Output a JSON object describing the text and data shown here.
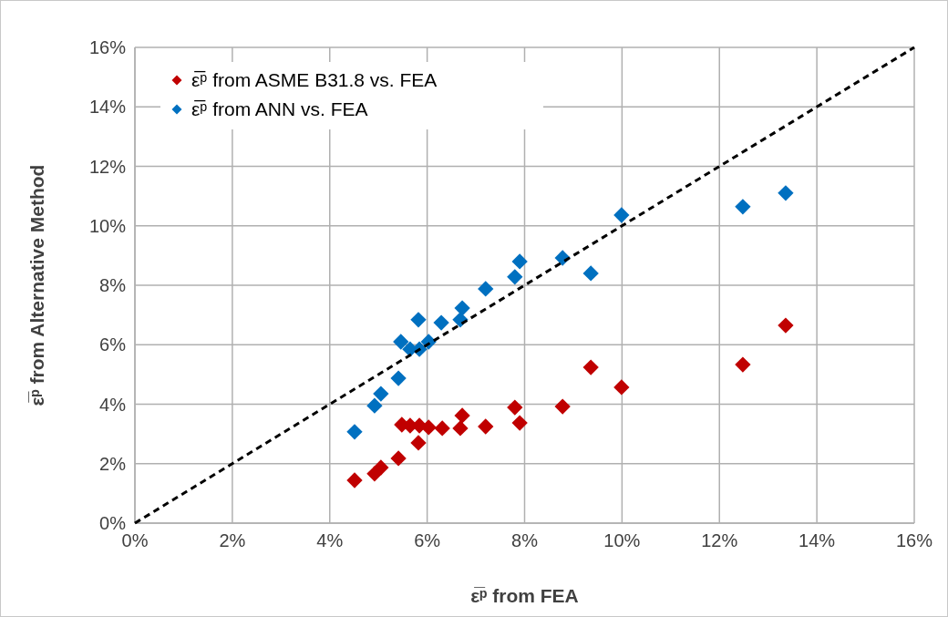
{
  "chart_data": {
    "type": "scatter",
    "xlabel": "ε̅ᵖ from FEA",
    "ylabel": "ε̅ᵖ from Alternative Method",
    "xlim": [
      0,
      16
    ],
    "ylim": [
      0,
      16
    ],
    "xticks": [
      {
        "value": 0,
        "label": "0%"
      },
      {
        "value": 2,
        "label": "2%"
      },
      {
        "value": 4,
        "label": "4%"
      },
      {
        "value": 6,
        "label": "6%"
      },
      {
        "value": 8,
        "label": "8%"
      },
      {
        "value": 10,
        "label": "10%"
      },
      {
        "value": 12,
        "label": "12%"
      },
      {
        "value": 14,
        "label": "14%"
      },
      {
        "value": 16,
        "label": "16%"
      }
    ],
    "yticks": [
      {
        "value": 0,
        "label": "0%"
      },
      {
        "value": 2,
        "label": "2%"
      },
      {
        "value": 4,
        "label": "4%"
      },
      {
        "value": 6,
        "label": "6%"
      },
      {
        "value": 8,
        "label": "8%"
      },
      {
        "value": 10,
        "label": "10%"
      },
      {
        "value": 12,
        "label": "12%"
      },
      {
        "value": 14,
        "label": "14%"
      },
      {
        "value": 16,
        "label": "16%"
      }
    ],
    "grid": true,
    "legend": "top left",
    "marker": "diamond",
    "series": [
      {
        "name": "ε̅ᵖ from ASME B31.8 vs. FEA",
        "color": "#c00000",
        "x": [
          4.51,
          4.92,
          5.05,
          5.41,
          5.48,
          5.65,
          5.84,
          6.03,
          6.31,
          5.82,
          6.68,
          6.72,
          7.2,
          7.8,
          7.9,
          8.78,
          9.36,
          9.99,
          12.48,
          13.36
        ],
        "values": [
          1.44,
          1.66,
          1.87,
          2.18,
          3.31,
          3.28,
          3.28,
          3.22,
          3.19,
          2.7,
          3.19,
          3.62,
          3.25,
          3.89,
          3.37,
          3.92,
          5.24,
          4.57,
          5.33,
          6.65
        ]
      },
      {
        "name": "ε̅ᵖ from ANN vs. FEA",
        "color": "#0070c0",
        "x": [
          4.51,
          4.92,
          5.05,
          5.41,
          5.46,
          5.65,
          5.84,
          6.03,
          5.82,
          6.29,
          6.68,
          6.72,
          7.2,
          7.8,
          7.9,
          8.78,
          9.36,
          9.99,
          12.48,
          13.36
        ],
        "values": [
          3.07,
          3.95,
          4.35,
          4.87,
          6.1,
          5.85,
          5.85,
          6.1,
          6.84,
          6.74,
          6.84,
          7.23,
          7.88,
          8.28,
          8.8,
          8.92,
          8.4,
          10.36,
          10.64,
          11.1
        ]
      },
      {
        "type": "line",
        "color": "#000000",
        "line_style": "dashed",
        "marker": "none",
        "x": [
          0,
          16
        ],
        "values": [
          0,
          16
        ]
      }
    ]
  }
}
